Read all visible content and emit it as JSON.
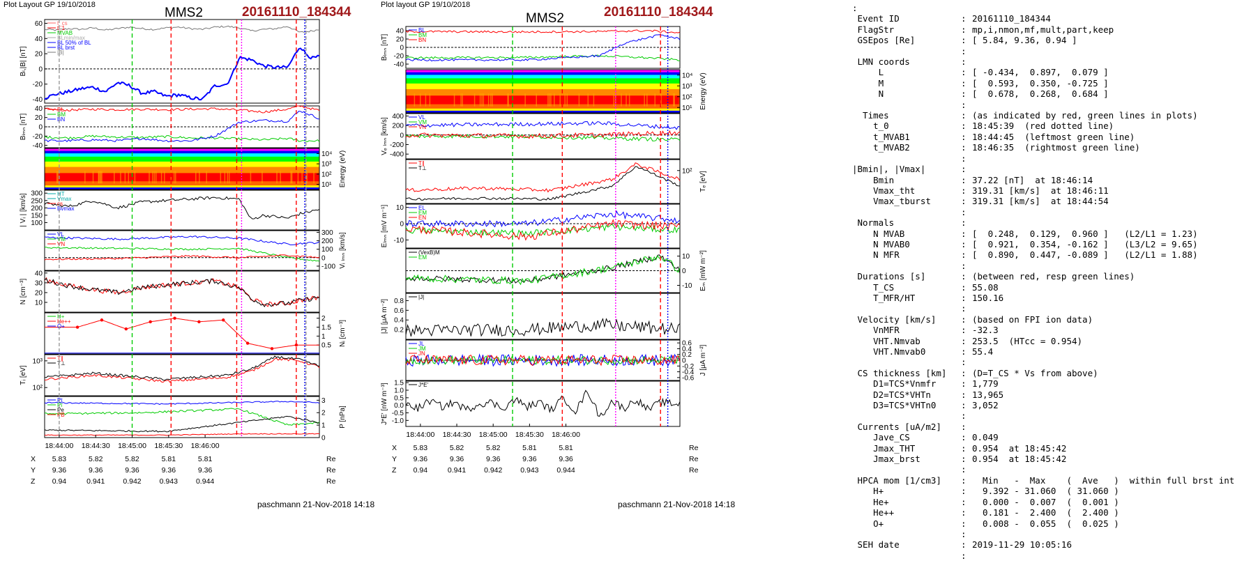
{
  "left_plot": {
    "header": "Plot Layout GP 19/10/2018",
    "spacecraft": "MMS2",
    "event_id": "20161110_184344",
    "footer": "paschmann 21-Nov-2018 14:18",
    "time_ticks": [
      "18:44:00",
      "18:44:30",
      "18:45:00",
      "18:45:30",
      "18:46:00"
    ],
    "position_table": {
      "rows": [
        {
          "label": "X",
          "values": [
            "5.83",
            "5.82",
            "5.82",
            "5.81",
            "5.81"
          ],
          "unit": "Re"
        },
        {
          "label": "Y",
          "values": [
            "9.36",
            "9.36",
            "9.36",
            "9.36",
            "9.36"
          ],
          "unit": "Re"
        },
        {
          "label": "Z",
          "values": [
            "0.94",
            "0.941",
            "0.942",
            "0.943",
            "0.944"
          ],
          "unit": "Re"
        }
      ]
    },
    "panel_labels": {
      "bl": "Bₗ,|B| [nT]",
      "blmn": "Bₗₘₙ [nT]",
      "energy": "Energy (eV)",
      "vi": "| Vᵢ | [km/s]",
      "vilmn": "Vᵢ ₗₘₙ [km/s]",
      "n": "N [cm⁻³]",
      "ni": "Nᵢ [cm⁻³]",
      "ti": "Tᵢ [eV]",
      "p": "P [nPa]"
    },
    "legends": {
      "bl": [
        "t_cs",
        "t_1",
        "MVAB",
        "BLmin/max",
        "BL 50% of BL",
        "BL brst",
        "|B|"
      ],
      "blmn": [
        "BL",
        "BM",
        "BN"
      ],
      "vi": [
        "HT",
        "Vmax",
        "cs",
        "Bvmax"
      ],
      "vilmn": [
        "VL",
        "VM",
        "VN"
      ],
      "ni": [
        "H+",
        "He++",
        "O+"
      ],
      "ti": [
        "T∥",
        "T⊥"
      ],
      "p": [
        "Pt",
        "Pi",
        "Pe",
        "PB"
      ]
    }
  },
  "mid_plot": {
    "header": "Plot layout GP 19/10/2018",
    "spacecraft": "MMS2",
    "event_id": "20161110_184344",
    "footer": "paschmann 21-Nov-2018 14:18",
    "time_ticks": [
      "18:44:00",
      "18:44:30",
      "18:45:00",
      "18:45:30",
      "18:46:00"
    ],
    "position_table": {
      "rows": [
        {
          "label": "X",
          "values": [
            "5.83",
            "5.82",
            "5.82",
            "5.81",
            "5.81"
          ],
          "unit": "Re"
        },
        {
          "label": "Y",
          "values": [
            "9.36",
            "9.36",
            "9.36",
            "9.36",
            "9.36"
          ],
          "unit": "Re"
        },
        {
          "label": "Z",
          "values": [
            "0.94",
            "0.941",
            "0.942",
            "0.943",
            "0.944"
          ],
          "unit": "Re"
        }
      ]
    },
    "panel_labels": {
      "blmn": "Bₗₘₙ [nT]",
      "energy": "Energy (eV)",
      "ve": "Vₑ ₗₘₙ [km/s]",
      "te": "Tₑ [eV]",
      "elmn": "Eₗₘₙ [mV m⁻¹]",
      "em": "Eₘ [mW m⁻²]",
      "j": "|J| [μA m⁻²]",
      "jlmn": "J [μA m⁻²]",
      "je": "J*E' [nW m⁻³]"
    },
    "legends": {
      "blmn": [
        "BL",
        "BM",
        "BN"
      ],
      "ve": [
        "VL",
        "VM",
        "VN"
      ],
      "te": [
        "T∥",
        "T⊥"
      ],
      "elmn": [
        "EL",
        "EM",
        "EN"
      ],
      "em": [
        "(VexB)M",
        "EM"
      ],
      "j": [
        "|J|"
      ],
      "jlmn": [
        "JL",
        "JM",
        "JN"
      ],
      "je": [
        "J*E'"
      ]
    }
  },
  "summary": {
    "rows": [
      {
        "key": ":",
        "val": ""
      },
      {
        "key": " Event ID",
        "val": "20161110_184344"
      },
      {
        "key": " FlagStr",
        "val": "mp,i,nmon,mf,mult,part,keep"
      },
      {
        "key": " GSEpos [Re]",
        "val": "[ 5.84, 9.36, 0.94 ]"
      },
      {
        "key": "",
        "val": ""
      },
      {
        "key": " LMN coords",
        "val": ""
      },
      {
        "key": "     L",
        "val": "[ -0.434,  0.897,  0.079 ]"
      },
      {
        "key": "     M",
        "val": "[  0.593,  0.350, -0.725 ]"
      },
      {
        "key": "     N",
        "val": "[  0.678,  0.268,  0.684 ]"
      },
      {
        "key": "",
        "val": ""
      },
      {
        "key": "  Times",
        "val": "(as indicated by red, green lines in plots)"
      },
      {
        "key": "    t_0",
        "val": "18:45:39  (red dotted line)"
      },
      {
        "key": "    t_MVAB1",
        "val": "18:44:45  (leftmost green line)"
      },
      {
        "key": "    t_MVAB2",
        "val": "18:46:35  (rightmost green line)"
      },
      {
        "key": "",
        "val": ""
      },
      {
        "key": "|Bmin|, |Vmax|",
        "val": ""
      },
      {
        "key": "    Bmin",
        "val": "37.22 [nT]  at 18:46:14"
      },
      {
        "key": "    Vmax_tht",
        "val": "319.31 [km/s]  at 18:46:11"
      },
      {
        "key": "    Vmax_tburst",
        "val": "319.31 [km/s]  at 18:44:54"
      },
      {
        "key": "",
        "val": ""
      },
      {
        "key": " Normals",
        "val": ""
      },
      {
        "key": "    N MVAB",
        "val": "[  0.248,  0.129,  0.960 ]   (L2/L1 = 1.23)"
      },
      {
        "key": "    N MVAB0",
        "val": "[  0.921,  0.354, -0.162 ]   (L3/L2 = 9.65)"
      },
      {
        "key": "    N MFR",
        "val": "[  0.890,  0.447, -0.089 ]   (L2/L1 = 1.88)"
      },
      {
        "key": "",
        "val": ""
      },
      {
        "key": " Durations [s]",
        "val": "(between red, resp green lines)"
      },
      {
        "key": "    T_CS",
        "val": "55.08"
      },
      {
        "key": "    T_MFR/HT",
        "val": "150.16"
      },
      {
        "key": "",
        "val": ""
      },
      {
        "key": " Velocity [km/s]",
        "val": "(based on FPI ion data)"
      },
      {
        "key": "    VnMFR",
        "val": "-32.3"
      },
      {
        "key": "    VHT.Nmvab",
        "val": "253.5  (HTcc = 0.954)"
      },
      {
        "key": "    VHT.Nmvab0",
        "val": "55.4"
      },
      {
        "key": "",
        "val": ""
      },
      {
        "key": " CS thickness [km]",
        "val": "(D=T_CS * Vs from above)"
      },
      {
        "key": "    D1=TCS*Vnmfr",
        "val": "1,779"
      },
      {
        "key": "    D2=TCS*VHTn",
        "val": "13,965"
      },
      {
        "key": "    D3=TCS*VHTn0",
        "val": "3,052"
      },
      {
        "key": "",
        "val": ""
      },
      {
        "key": " Currents [uA/m2]",
        "val": ""
      },
      {
        "key": "    Jave_CS",
        "val": "0.049"
      },
      {
        "key": "    Jmax_THT",
        "val": "0.954  at 18:45:42"
      },
      {
        "key": "    Jmax_brst",
        "val": "0.954  at 18:45:42"
      },
      {
        "key": "",
        "val": ""
      },
      {
        "key": " HPCA mom [1/cm3]",
        "val": "  Min   -  Max    (  Ave   )  within full brst int"
      },
      {
        "key": "    H+",
        "val": "  9.392 - 31.060  ( 31.060 )"
      },
      {
        "key": "    He+",
        "val": "  0.000 -  0.007  (  0.001 )"
      },
      {
        "key": "    He++",
        "val": "  0.181 -  2.400  (  2.400 )"
      },
      {
        "key": "    O+",
        "val": "  0.008 -  0.055  (  0.025 )"
      },
      {
        "key": "",
        "val": ""
      },
      {
        "key": " SEH date",
        "val": "2019-11-29 10:05:16"
      },
      {
        "key": "",
        "val": ""
      }
    ]
  },
  "colors": {
    "red": "#ff0000",
    "green": "#00cc00",
    "blue": "#0000ff",
    "black": "#000000",
    "gray": "#777777",
    "magenta": "#ff00ff",
    "event_id": "#a0181a"
  },
  "chart_data": [
    {
      "type": "line",
      "title": "MMS2",
      "xlabel": "",
      "ylabel": "Bₗ,|B| [nT]",
      "x_ticks": [
        "18:44:00",
        "18:44:30",
        "18:45:00",
        "18:45:30",
        "18:46:00"
      ],
      "ylim": [
        -45,
        65
      ],
      "y_ticks": [
        -40,
        -20,
        0,
        20,
        40,
        60
      ],
      "series": [
        {
          "name": "|B|",
          "x": [
            0,
            10,
            20,
            30,
            40,
            50,
            60,
            70,
            80,
            90,
            100,
            110,
            120,
            130,
            140,
            150,
            160,
            170,
            180,
            190,
            200,
            210,
            220,
            226
          ],
          "values": [
            52,
            51,
            53,
            52,
            54,
            51,
            53,
            55,
            53,
            52,
            54,
            55,
            53,
            52,
            55,
            56,
            54,
            50,
            52,
            53,
            56,
            48,
            50,
            52
          ]
        },
        {
          "name": "BL brst",
          "x": [
            0,
            10,
            20,
            30,
            40,
            50,
            60,
            70,
            80,
            90,
            100,
            110,
            120,
            130,
            140,
            150,
            155,
            160,
            170,
            180,
            190,
            200,
            210,
            215,
            220,
            226
          ],
          "values": [
            -38,
            -33,
            -30,
            -26,
            -24,
            -30,
            -18,
            -22,
            -32,
            -30,
            -36,
            -34,
            -38,
            -40,
            -22,
            -20,
            -5,
            15,
            12,
            4,
            2,
            2,
            30,
            20,
            14,
            16
          ]
        }
      ]
    },
    {
      "type": "line",
      "xlabel": "",
      "ylabel": "Bₗₘₙ [nT]",
      "x_ticks": [
        "18:44:00",
        "18:44:30",
        "18:45:00",
        "18:45:30",
        "18:46:00"
      ],
      "ylim": [
        -45,
        45
      ],
      "y_ticks": [
        -40,
        -20,
        0,
        20,
        40
      ],
      "series": [
        {
          "name": "BL",
          "x": [
            0,
            20,
            40,
            60,
            80,
            100,
            120,
            140,
            160,
            180,
            200,
            210,
            226
          ],
          "values": [
            38,
            36,
            38,
            37,
            38,
            37,
            38,
            39,
            36,
            32,
            38,
            45,
            35
          ]
        },
        {
          "name": "BM",
          "x": [
            0,
            20,
            40,
            60,
            80,
            100,
            120,
            140,
            160,
            180,
            200,
            210,
            226
          ],
          "values": [
            -22,
            -24,
            -20,
            -22,
            -23,
            -21,
            -24,
            -24,
            -26,
            -28,
            -25,
            -30,
            -30
          ]
        },
        {
          "name": "BN",
          "x": [
            0,
            20,
            40,
            60,
            80,
            100,
            120,
            140,
            160,
            180,
            200,
            210,
            226
          ],
          "values": [
            -30,
            -30,
            -28,
            -30,
            -25,
            -30,
            -30,
            -20,
            10,
            14,
            12,
            35,
            18
          ]
        }
      ]
    },
    {
      "type": "line",
      "xlabel": "",
      "ylabel": "| Vᵢ | [km/s]",
      "x_ticks": [
        "18:44:00",
        "18:44:30",
        "18:45:00",
        "18:45:30",
        "18:46:00"
      ],
      "ylim": [
        50,
        320
      ],
      "y_ticks": [
        100,
        150,
        200,
        250,
        300
      ],
      "series": [
        {
          "name": "|Vi|",
          "x": [
            0,
            20,
            40,
            60,
            80,
            100,
            120,
            140,
            160,
            170,
            180,
            200,
            210,
            226
          ],
          "values": [
            230,
            210,
            250,
            200,
            240,
            250,
            260,
            270,
            260,
            120,
            150,
            130,
            160,
            190
          ]
        }
      ]
    },
    {
      "type": "line",
      "xlabel": "",
      "ylabel": "N [cm⁻³]",
      "x_ticks": [
        "18:44:00",
        "18:44:30",
        "18:45:00",
        "18:45:30",
        "18:46:00"
      ],
      "ylim": [
        0,
        42
      ],
      "y_ticks": [
        10,
        20,
        30,
        40
      ],
      "series": [
        {
          "name": "N",
          "x": [
            0,
            20,
            40,
            60,
            80,
            100,
            120,
            140,
            160,
            170,
            180,
            200,
            210,
            226
          ],
          "values": [
            33,
            27,
            23,
            20,
            25,
            28,
            30,
            32,
            25,
            14,
            8,
            9,
            12,
            15
          ]
        }
      ]
    },
    {
      "type": "line",
      "xlabel": "",
      "ylabel": "Nᵢ [cm⁻³]",
      "x_ticks": [
        "18:44:00",
        "18:44:30",
        "18:45:00",
        "18:45:30",
        "18:46:00"
      ],
      "ylim": [
        0,
        2.3
      ],
      "y_ticks": [
        0.5,
        1.0,
        1.5,
        2.0
      ],
      "series": [
        {
          "name": "He++",
          "x": [
            27,
            47,
            67,
            87,
            107,
            127,
            147,
            167,
            187,
            207
          ],
          "values": [
            1.5,
            1.9,
            1.4,
            1.8,
            2.0,
            1.8,
            1.9,
            0.6,
            0.3,
            0.5
          ]
        }
      ]
    },
    {
      "type": "line",
      "xlabel": "",
      "ylabel": "J*E' [nW m⁻³]",
      "x_ticks": [
        "18:44:00",
        "18:44:30",
        "18:45:00",
        "18:45:30",
        "18:46:00"
      ],
      "ylim": [
        -1.5,
        1.5
      ],
      "y_ticks": [
        -1.0,
        -0.5,
        0.0,
        0.5,
        1.0,
        1.5
      ],
      "series": [
        {
          "name": "J*E'",
          "x": [
            0,
            10,
            20,
            30,
            40,
            50,
            60,
            70,
            80,
            90,
            100,
            110,
            120,
            130,
            140,
            150,
            160,
            170,
            180,
            190,
            200,
            210,
            220
          ],
          "values": [
            0.1,
            -0.2,
            0.3,
            -0.1,
            0.2,
            -0.3,
            0.1,
            0.2,
            -0.2,
            0.4,
            -0.1,
            0.2,
            -0.3,
            0.5,
            -0.4,
            1.0,
            -0.8,
            0.3,
            -0.2,
            0.4,
            -0.3,
            0.2,
            0.1
          ]
        }
      ]
    }
  ]
}
